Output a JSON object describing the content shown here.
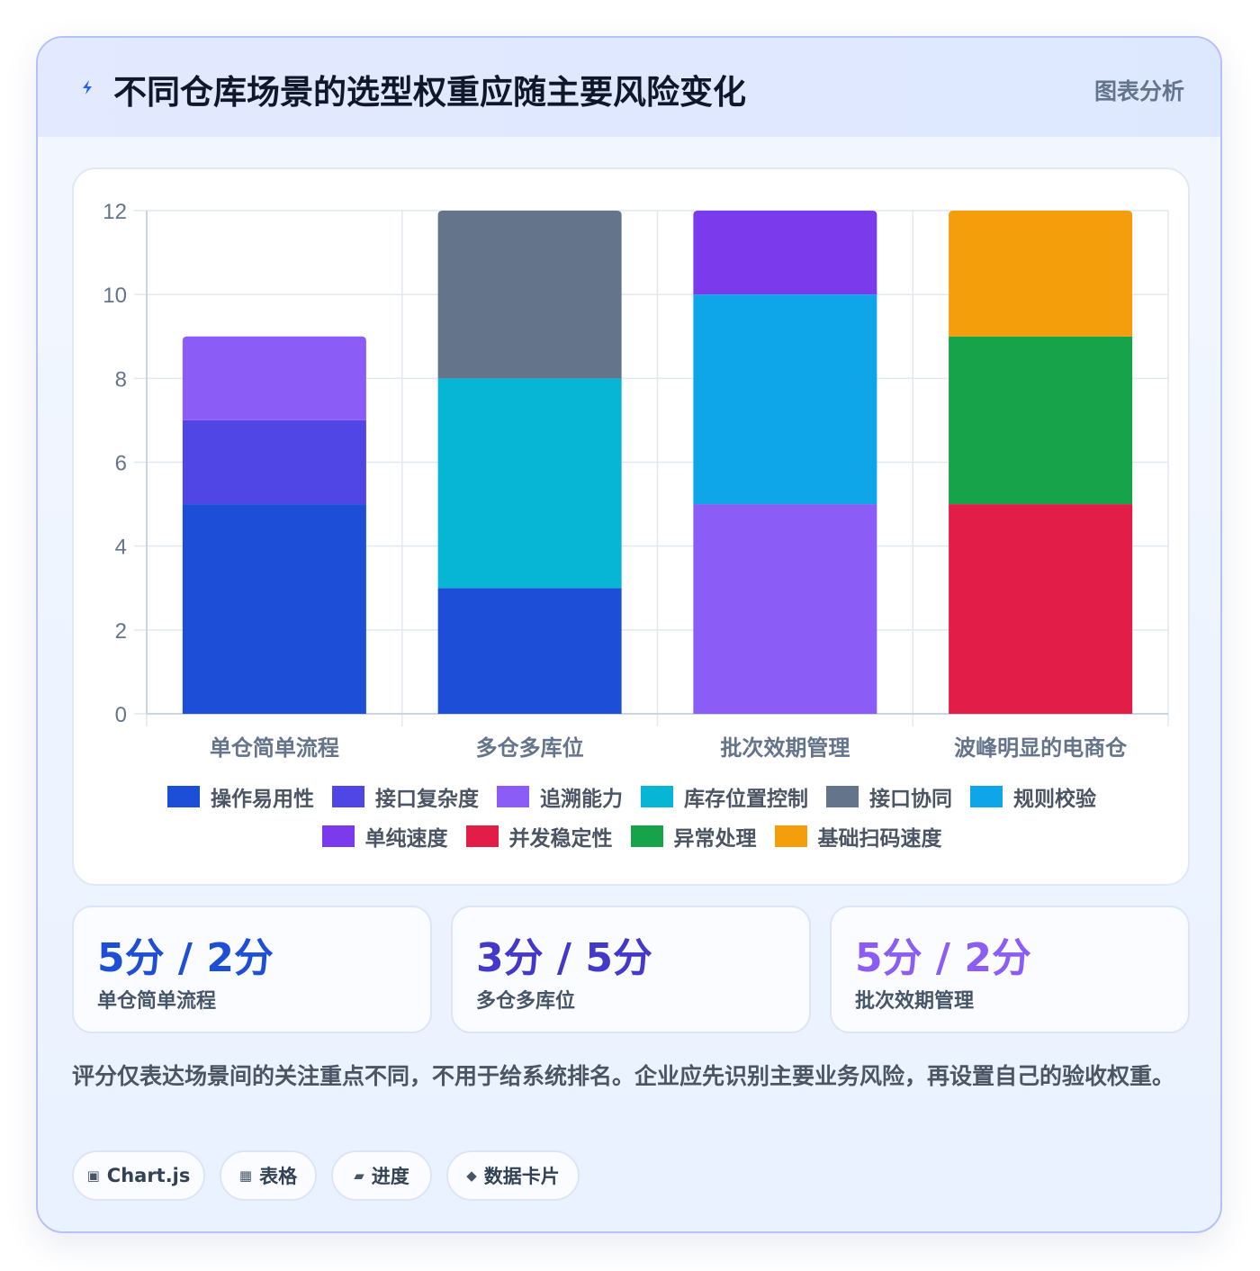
{
  "header": {
    "title": "不同仓库场景的选型权重应随主要风险变化",
    "tag": "图表分析"
  },
  "chart_data": {
    "type": "bar",
    "stacked": true,
    "categories": [
      "单仓简单流程",
      "多仓多库位",
      "批次效期管理",
      "波峰明显的电商仓"
    ],
    "ylim": [
      0,
      12
    ],
    "yticks": [
      0,
      2,
      4,
      6,
      8,
      10,
      12
    ],
    "grid": true,
    "legend_position": "bottom",
    "series": [
      {
        "name": "操作易用性",
        "color": "#1d4ed8",
        "values": [
          5,
          3,
          0,
          0
        ]
      },
      {
        "name": "接口复杂度",
        "color": "#4f46e5",
        "values": [
          2,
          0,
          0,
          0
        ]
      },
      {
        "name": "追溯能力",
        "color": "#8b5cf6",
        "values": [
          2,
          0,
          5,
          0
        ]
      },
      {
        "name": "库存位置控制",
        "color": "#06b6d4",
        "values": [
          0,
          5,
          0,
          0
        ]
      },
      {
        "name": "接口协同",
        "color": "#64748b",
        "values": [
          0,
          4,
          0,
          0
        ]
      },
      {
        "name": "规则校验",
        "color": "#0ea5e9",
        "values": [
          0,
          0,
          5,
          0
        ]
      },
      {
        "name": "单纯速度",
        "color": "#7c3aed",
        "values": [
          0,
          0,
          2,
          0
        ]
      },
      {
        "name": "并发稳定性",
        "color": "#e11d48",
        "values": [
          0,
          0,
          0,
          5
        ]
      },
      {
        "name": "异常处理",
        "color": "#16a34a",
        "values": [
          0,
          0,
          0,
          4
        ]
      },
      {
        "name": "基础扫码速度",
        "color": "#f59e0b",
        "values": [
          0,
          0,
          0,
          3
        ]
      }
    ]
  },
  "stats": [
    {
      "value": "5分 / 2分",
      "label": "单仓简单流程",
      "color": "#1d4ed8"
    },
    {
      "value": "3分 / 5分",
      "label": "多仓多库位",
      "color": "#4338ca"
    },
    {
      "value": "5分 / 2分",
      "label": "批次效期管理",
      "color": "#8b5cf6"
    }
  ],
  "note": "评分仅表达场景间的关注重点不同，不用于给系统排名。企业应先识别主要业务风险，再设置自己的验收权重。",
  "chips": [
    {
      "icon": "▣",
      "icon_name": "chart-icon",
      "label": "Chart.js"
    },
    {
      "icon": "▦",
      "icon_name": "table-icon",
      "label": "表格"
    },
    {
      "icon": "▰",
      "icon_name": "progress-icon",
      "label": "进度"
    },
    {
      "icon": "◆",
      "icon_name": "data-card-icon",
      "label": "数据卡片"
    }
  ]
}
